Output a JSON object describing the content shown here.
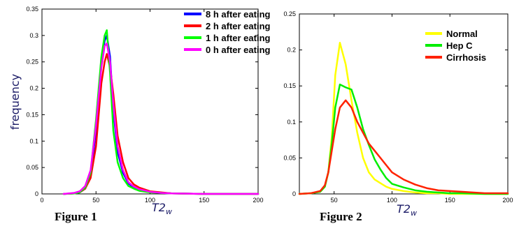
{
  "chart_data": [
    {
      "type": "line",
      "caption": "Figure 1",
      "ylabel": "frequency",
      "xlabel_main": "T2",
      "xlabel_sub": "w",
      "xlim": [
        0,
        200
      ],
      "ylim": [
        0,
        0.35
      ],
      "xticks": [
        0,
        50,
        100,
        150,
        200
      ],
      "yticks": [
        0,
        0.05,
        0.1,
        0.15,
        0.2,
        0.25,
        0.3,
        0.35
      ],
      "yticklabels": [
        "0",
        "0.05",
        "0.1",
        "0.15",
        "0.2",
        "0.25",
        "0.3",
        "0.35"
      ],
      "grid": false,
      "legend_position": "top-right",
      "series": [
        {
          "name": "8 h after eating",
          "color": "#0000ff",
          "x": [
            20,
            30,
            35,
            40,
            45,
            50,
            55,
            58,
            60,
            63,
            66,
            70,
            75,
            80,
            85,
            90,
            100,
            110,
            120,
            150,
            200
          ],
          "y": [
            0,
            0.001,
            0.003,
            0.01,
            0.035,
            0.12,
            0.25,
            0.29,
            0.3,
            0.26,
            0.16,
            0.08,
            0.04,
            0.02,
            0.012,
            0.008,
            0.004,
            0.002,
            0.001,
            0,
            0
          ]
        },
        {
          "name": "2 h after eating",
          "color": "#ff0000",
          "x": [
            20,
            30,
            35,
            40,
            45,
            50,
            55,
            58,
            60,
            63,
            66,
            70,
            75,
            80,
            85,
            90,
            100,
            110,
            120,
            150,
            200
          ],
          "y": [
            0,
            0.001,
            0.003,
            0.01,
            0.03,
            0.09,
            0.21,
            0.25,
            0.265,
            0.24,
            0.19,
            0.11,
            0.06,
            0.03,
            0.018,
            0.012,
            0.005,
            0.003,
            0.001,
            0,
            0
          ]
        },
        {
          "name": "1 h after eating",
          "color": "#00ff00",
          "x": [
            20,
            30,
            35,
            40,
            45,
            50,
            55,
            58,
            60,
            63,
            66,
            70,
            75,
            80,
            85,
            90,
            100,
            110,
            120,
            150,
            200
          ],
          "y": [
            0,
            0.001,
            0.003,
            0.012,
            0.04,
            0.14,
            0.26,
            0.3,
            0.31,
            0.23,
            0.12,
            0.06,
            0.03,
            0.015,
            0.01,
            0.006,
            0.003,
            0.002,
            0.001,
            0,
            0
          ]
        },
        {
          "name": "0 h after eating",
          "color": "#ff00ff",
          "x": [
            20,
            30,
            35,
            40,
            45,
            50,
            55,
            58,
            60,
            63,
            66,
            70,
            75,
            80,
            85,
            90,
            100,
            110,
            120,
            150,
            200
          ],
          "y": [
            0,
            0.002,
            0.005,
            0.015,
            0.045,
            0.13,
            0.24,
            0.28,
            0.285,
            0.25,
            0.17,
            0.09,
            0.045,
            0.022,
            0.014,
            0.009,
            0.004,
            0.002,
            0.001,
            0,
            0
          ]
        }
      ]
    },
    {
      "type": "line",
      "caption": "Figure 2",
      "ylabel": "",
      "xlabel_main": "T2",
      "xlabel_sub": "w",
      "xlim": [
        20,
        200
      ],
      "ylim": [
        0,
        0.25
      ],
      "xticks": [
        50,
        100,
        150,
        200
      ],
      "yticks": [
        0,
        0.05,
        0.1,
        0.15,
        0.2,
        0.25
      ],
      "yticklabels": [
        "0",
        "0.05",
        "0.1",
        "0.15",
        "0.2",
        "0.25"
      ],
      "grid": false,
      "legend_position": "top-right",
      "series": [
        {
          "name": "Normal",
          "color": "#ffff00",
          "x": [
            20,
            30,
            38,
            42,
            45,
            48,
            51,
            55,
            60,
            65,
            70,
            75,
            80,
            85,
            90,
            95,
            100,
            110,
            120,
            130,
            140,
            150,
            160,
            180,
            200
          ],
          "y": [
            0,
            0.001,
            0.003,
            0.01,
            0.03,
            0.08,
            0.165,
            0.21,
            0.18,
            0.13,
            0.085,
            0.05,
            0.03,
            0.02,
            0.015,
            0.01,
            0.007,
            0.004,
            0.002,
            0.001,
            0.001,
            0,
            0,
            0,
            0
          ]
        },
        {
          "name": "Hep C",
          "color": "#00ee00",
          "x": [
            20,
            30,
            38,
            42,
            45,
            48,
            51,
            55,
            60,
            65,
            70,
            75,
            80,
            85,
            90,
            95,
            100,
            110,
            120,
            130,
            140,
            150,
            160,
            180,
            200
          ],
          "y": [
            0,
            0.001,
            0.003,
            0.01,
            0.03,
            0.07,
            0.12,
            0.152,
            0.148,
            0.145,
            0.12,
            0.09,
            0.068,
            0.048,
            0.034,
            0.022,
            0.014,
            0.009,
            0.005,
            0.003,
            0.002,
            0.001,
            0.001,
            0,
            0
          ]
        },
        {
          "name": "Cirrhosis",
          "color": "#ff2200",
          "x": [
            20,
            30,
            38,
            42,
            45,
            48,
            51,
            55,
            60,
            65,
            70,
            75,
            80,
            85,
            90,
            95,
            100,
            110,
            120,
            130,
            140,
            150,
            160,
            180,
            200
          ],
          "y": [
            0,
            0.001,
            0.004,
            0.012,
            0.03,
            0.06,
            0.09,
            0.12,
            0.13,
            0.12,
            0.1,
            0.085,
            0.07,
            0.06,
            0.05,
            0.04,
            0.03,
            0.02,
            0.013,
            0.008,
            0.005,
            0.004,
            0.003,
            0.001,
            0.001
          ]
        }
      ]
    }
  ]
}
